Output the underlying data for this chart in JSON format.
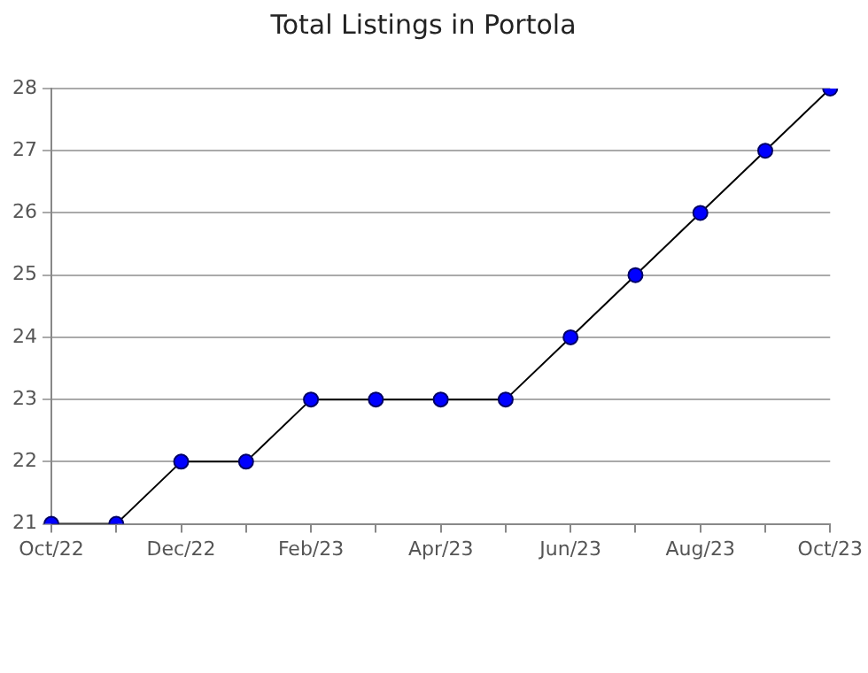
{
  "chart_data": {
    "type": "line",
    "title": "Total Listings in Portola",
    "categories": [
      "Oct/22",
      null,
      "Dec/22",
      null,
      "Feb/23",
      null,
      "Apr/23",
      null,
      "Jun/23",
      null,
      "Aug/23",
      null,
      "Oct/23"
    ],
    "series": [
      {
        "color": "#0000ff",
        "values": [
          21,
          21,
          22,
          22,
          23,
          23,
          23,
          23,
          24,
          25,
          26,
          27,
          28
        ]
      }
    ],
    "ylim": [
      21,
      28
    ],
    "yticks": [
      21,
      22,
      23,
      24,
      25,
      26,
      27,
      28
    ],
    "grid": "y",
    "legend": false,
    "marker": "circle",
    "line_style": "solid"
  }
}
